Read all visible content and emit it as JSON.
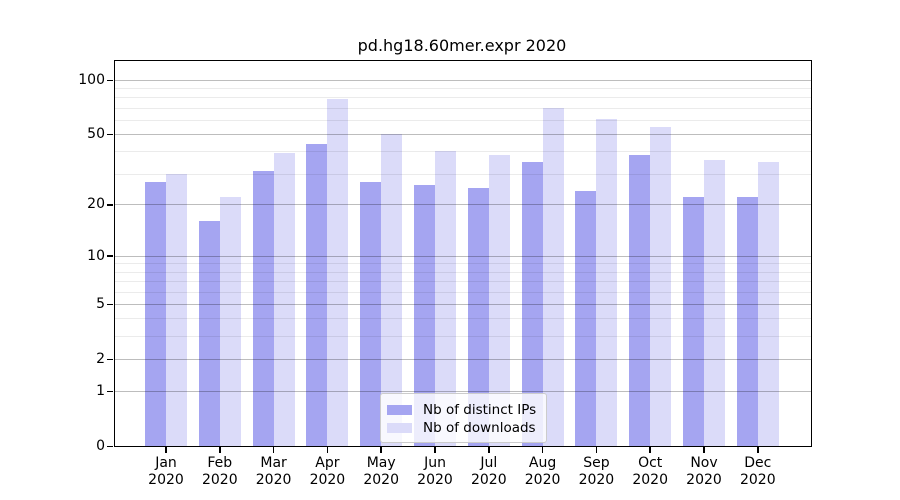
{
  "title": "pd.hg18.60mer.expr 2020",
  "chart_data": {
    "type": "bar",
    "title": "pd.hg18.60mer.expr 2020",
    "categories": [
      "Jan",
      "Feb",
      "Mar",
      "Apr",
      "May",
      "Jun",
      "Jul",
      "Aug",
      "Sep",
      "Oct",
      "Nov",
      "Dec"
    ],
    "x_year_suffix": "2020",
    "series": [
      {
        "name": "Nb of distinct IPs",
        "color": "#a5a5f1",
        "values": [
          27,
          16,
          31,
          44,
          27,
          26,
          25,
          35,
          24,
          38,
          22,
          22
        ]
      },
      {
        "name": "Nb of downloads",
        "color": "#dbdbf9",
        "values": [
          30,
          22,
          39,
          78,
          50,
          40,
          38,
          70,
          61,
          55,
          36,
          35
        ]
      }
    ],
    "xlabel": "",
    "ylabel": "",
    "yscale": "log10(1+x)",
    "ylim": [
      0,
      127
    ],
    "y_major_ticks": [
      0,
      1,
      2,
      5,
      10,
      20,
      50,
      100
    ],
    "y_minor_gridlines": [
      3,
      4,
      6,
      7,
      8,
      9,
      30,
      40,
      60,
      70,
      80,
      90
    ],
    "grid": "horizontal",
    "legend_position": "bottom-center"
  },
  "colors": {
    "bar_distinct_ips": "#a5a5f1",
    "bar_downloads": "#dbdbf9",
    "frame": "#000000",
    "major_grid": "rgba(0,0,0,0.26)",
    "minor_grid": "rgba(0,0,0,0.08)",
    "legend_border": "#cccccc",
    "legend_background": "rgba(255,255,255,0.8)"
  }
}
